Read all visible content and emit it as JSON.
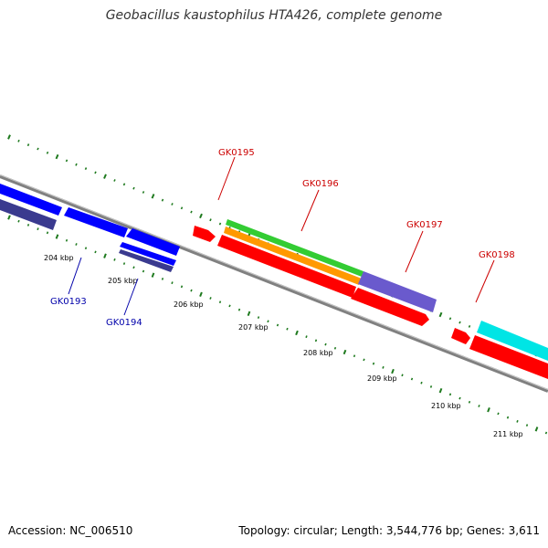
{
  "title": "Geobacillus kaustophilus HTA426, complete genome",
  "footer": {
    "accession": "Accession: NC_006510",
    "summary": "Topology: circular; Length: 3,544,776 bp; Genes: 3,611"
  },
  "colors": {
    "backbone": "#808080",
    "tick": "#1f7a1f",
    "label_plus": "#cc0000",
    "label_minus": "#0000aa",
    "feature_red": "#ff0000",
    "feature_blue": "#0000ff",
    "feature_navy": "#3a3a8f",
    "feature_green": "#33cc33",
    "feature_orange": "#ff9900",
    "feature_purple": "#6a5acd",
    "feature_cyan": "#00e5e5"
  },
  "kbp_labels": [
    "204 kbp",
    "205 kbp",
    "206 kbp",
    "207 kbp",
    "208 kbp",
    "209 kbp",
    "210 kbp",
    "211 kbp"
  ],
  "gene_labels_plus": [
    "GK0195",
    "GK0196",
    "GK0197",
    "GK0198"
  ],
  "gene_labels_minus": [
    "GK0193",
    "GK0194"
  ]
}
